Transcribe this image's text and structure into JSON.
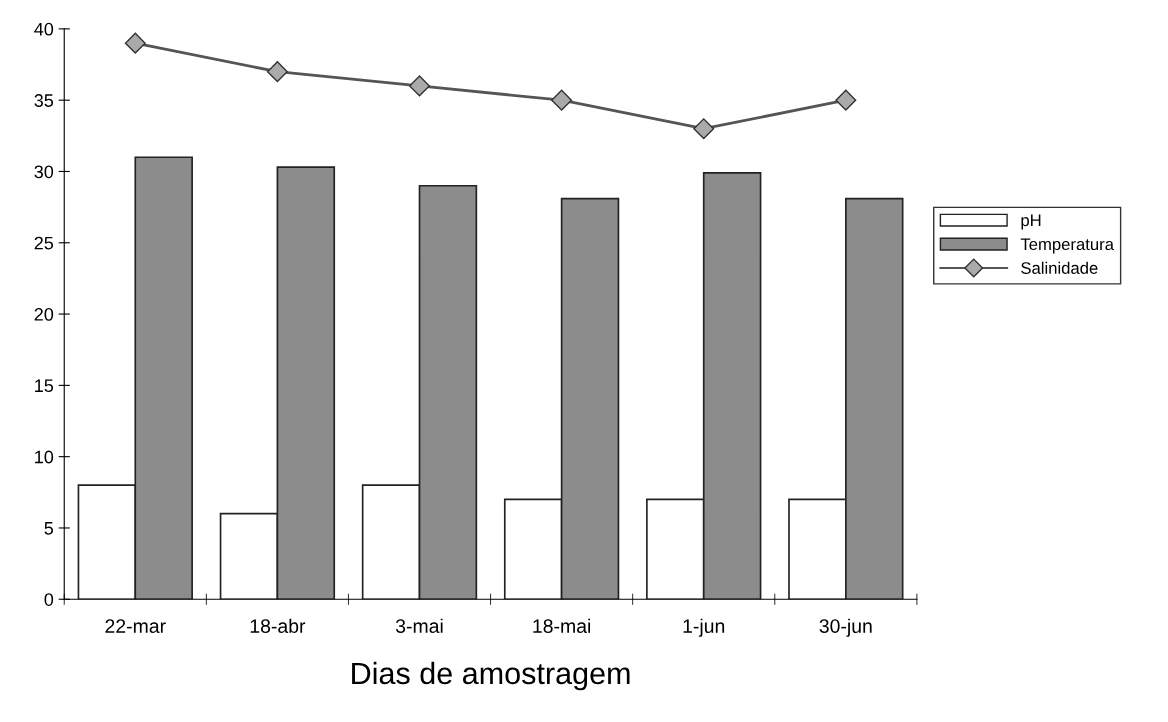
{
  "chart_data": {
    "type": "bar",
    "xlabel": "Dias de amostragem",
    "categories": [
      "22-mar",
      "18-abr",
      "3-mai",
      "18-mai",
      "1-jun",
      "30-jun"
    ],
    "series": [
      {
        "name": "pH",
        "color": "#ffffff",
        "values": [
          8,
          6,
          8,
          7,
          7,
          7
        ]
      },
      {
        "name": "Temperatura",
        "color": "#8c8c8c",
        "values": [
          31,
          30.3,
          29,
          28.1,
          29.9,
          28.1
        ]
      },
      {
        "name": "Salinidade",
        "type": "line",
        "color": "#555555",
        "marker": "diamond",
        "values": [
          39,
          37,
          36,
          35,
          33,
          35
        ]
      }
    ],
    "ylim": [
      0,
      40
    ],
    "yticks": [
      0,
      5,
      10,
      15,
      20,
      25,
      30,
      35,
      40
    ],
    "grid": false,
    "legend": "right"
  }
}
